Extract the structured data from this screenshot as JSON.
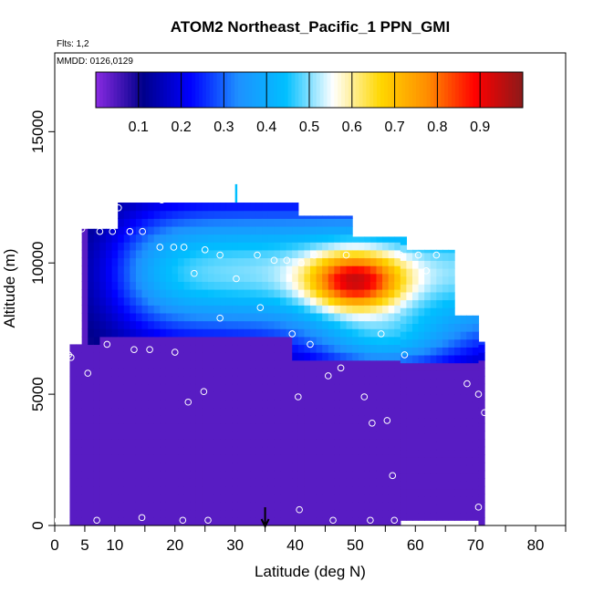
{
  "chart_data": {
    "type": "heatmap",
    "title": "ATOM2 Northeast_Pacific_1 PPN_GMI",
    "annotations": [
      "Flts: 1,2",
      "MMDD: 0126,0129"
    ],
    "xlabel": "Latitude (deg N)",
    "ylabel": "Altitude (m)",
    "xlim": [
      0,
      85
    ],
    "ylim": [
      0,
      18000
    ],
    "x_ticks": [
      0,
      5,
      10,
      20,
      30,
      40,
      50,
      60,
      70,
      80
    ],
    "y_ticks": [
      0,
      5000,
      10000,
      15000
    ],
    "colorbar": {
      "ticks": [
        0.1,
        0.2,
        0.3,
        0.4,
        0.5,
        0.6,
        0.7,
        0.8,
        0.9
      ],
      "range": [
        0,
        1
      ],
      "colors": [
        "#8a2be2",
        "#00008b",
        "#0000ff",
        "#1e90ff",
        "#00bfff",
        "#ffffff",
        "#ffd700",
        "#ff8c00",
        "#ff0000",
        "#8b1a1a"
      ]
    },
    "marker_latitude": 35,
    "grid": false
  }
}
